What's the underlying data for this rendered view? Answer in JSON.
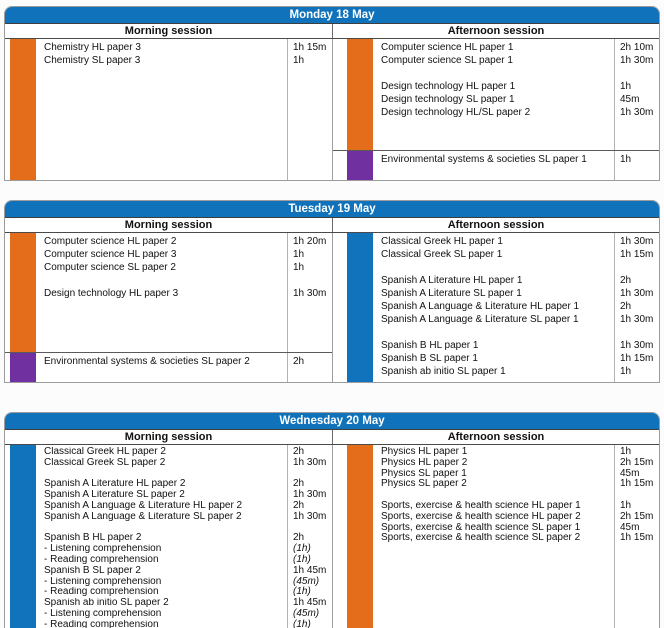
{
  "labels": {
    "morning_session": "Morning session",
    "afternoon_session": "Afternoon session"
  },
  "colors": {
    "day_header_blue": "#1072BA",
    "session_bar_orange": "#E36D1A",
    "session_bar_blue": "#1173BC",
    "session_bar_purple": "#7030A0"
  },
  "days": [
    {
      "title": "Monday 18 May",
      "sessions": {
        "morning": {
          "segments": [
            {
              "color": "orange",
              "rows": [
                {
                  "name": "Chemistry HL paper 3",
                  "time": "1h 15m"
                },
                {
                  "name": "Chemistry SL paper 3",
                  "time": "1h"
                }
              ]
            }
          ]
        },
        "afternoon": {
          "segments": [
            {
              "color": "orange",
              "rows": [
                {
                  "name": "Computer science HL paper 1",
                  "time": "2h 10m"
                },
                {
                  "name": "Computer science SL paper 1",
                  "time": "1h 30m"
                },
                {
                  "name": "",
                  "time": ""
                },
                {
                  "name": "Design technology HL paper 1",
                  "time": "1h"
                },
                {
                  "name": "Design technology SL paper 1",
                  "time": "45m"
                },
                {
                  "name": "Design technology HL/SL paper 2",
                  "time": "1h 30m"
                }
              ]
            },
            {
              "color": "purple",
              "rows": [
                {
                  "name": "Environmental systems & societies SL paper 1",
                  "time": "1h"
                }
              ]
            }
          ]
        }
      }
    },
    {
      "title": "Tuesday 19 May",
      "sessions": {
        "morning": {
          "segments": [
            {
              "color": "orange",
              "rows": [
                {
                  "name": "Computer science HL paper 2",
                  "time": "1h 20m"
                },
                {
                  "name": "Computer science HL paper 3",
                  "time": "1h"
                },
                {
                  "name": "Computer science SL paper 2",
                  "time": "1h"
                },
                {
                  "name": "",
                  "time": ""
                },
                {
                  "name": "Design technology HL paper 3",
                  "time": "1h 30m"
                }
              ]
            },
            {
              "color": "purple",
              "rows": [
                {
                  "name": "Environmental systems & societies SL paper 2",
                  "time": "2h"
                }
              ]
            }
          ]
        },
        "afternoon": {
          "segments": [
            {
              "color": "blue",
              "rows": [
                {
                  "name": "Classical Greek HL paper 1",
                  "time": "1h 30m"
                },
                {
                  "name": "Classical Greek SL paper 1",
                  "time": "1h 15m"
                },
                {
                  "name": "",
                  "time": ""
                },
                {
                  "name": "Spanish A Literature HL paper 1",
                  "time": "2h"
                },
                {
                  "name": "Spanish A Literature SL paper 1",
                  "time": "1h 30m"
                },
                {
                  "name": "Spanish A Language & Literature HL paper 1",
                  "time": "2h"
                },
                {
                  "name": "Spanish A Language & Literature SL paper 1",
                  "time": "1h 30m"
                },
                {
                  "name": "",
                  "time": ""
                },
                {
                  "name": "Spanish B HL paper 1",
                  "time": "1h 30m"
                },
                {
                  "name": "Spanish B SL paper 1",
                  "time": "1h 15m"
                },
                {
                  "name": "Spanish ab initio SL paper 1",
                  "time": "1h"
                }
              ]
            }
          ]
        }
      }
    },
    {
      "title": "Wednesday 20 May",
      "sessions": {
        "morning": {
          "segments": [
            {
              "color": "blue",
              "rows": [
                {
                  "name": "Classical Greek HL paper 2",
                  "time": "2h"
                },
                {
                  "name": "Classical Greek SL paper 2",
                  "time": "1h 30m"
                },
                {
                  "name": "",
                  "time": ""
                },
                {
                  "name": "Spanish A Literature HL paper 2",
                  "time": "2h"
                },
                {
                  "name": "Spanish A Literature SL paper 2",
                  "time": "1h 30m"
                },
                {
                  "name": "Spanish A Language & Literature HL paper 2",
                  "time": "2h"
                },
                {
                  "name": "Spanish A Language & Literature SL paper 2",
                  "time": "1h 30m"
                },
                {
                  "name": "",
                  "time": ""
                },
                {
                  "name": "Spanish B HL paper 2",
                  "time": "2h"
                },
                {
                  "name": "- Listening comprehension",
                  "time": "(1h)",
                  "italic_time": true
                },
                {
                  "name": "- Reading comprehension",
                  "time": "(1h)",
                  "italic_time": true
                },
                {
                  "name": "Spanish B SL paper 2",
                  "time": "1h 45m"
                },
                {
                  "name": "- Listening comprehension",
                  "time": "(45m)",
                  "italic_time": true
                },
                {
                  "name": "- Reading comprehension",
                  "time": "(1h)",
                  "italic_time": true
                },
                {
                  "name": "Spanish ab initio SL paper 2",
                  "time": "1h 45m"
                },
                {
                  "name": "- Listening comprehension",
                  "time": "(45m)",
                  "italic_time": true
                },
                {
                  "name": "- Reading comprehension",
                  "time": "(1h)",
                  "italic_time": true
                }
              ]
            }
          ]
        },
        "afternoon": {
          "segments": [
            {
              "color": "orange",
              "rows": [
                {
                  "name": "Physics HL paper 1",
                  "time": "1h"
                },
                {
                  "name": "Physics HL paper 2",
                  "time": "2h 15m"
                },
                {
                  "name": "Physics SL paper 1",
                  "time": "45m"
                },
                {
                  "name": "Physics SL paper 2",
                  "time": "1h 15m"
                },
                {
                  "name": "",
                  "time": ""
                },
                {
                  "name": "Sports, exercise & health science HL paper 1",
                  "time": "1h"
                },
                {
                  "name": "Sports, exercise & health science HL paper 2",
                  "time": "2h 15m"
                },
                {
                  "name": "Sports, exercise & health science SL paper 1",
                  "time": "45m"
                },
                {
                  "name": "Sports, exercise & health science SL paper 2",
                  "time": "1h 15m"
                }
              ]
            }
          ]
        }
      }
    }
  ]
}
